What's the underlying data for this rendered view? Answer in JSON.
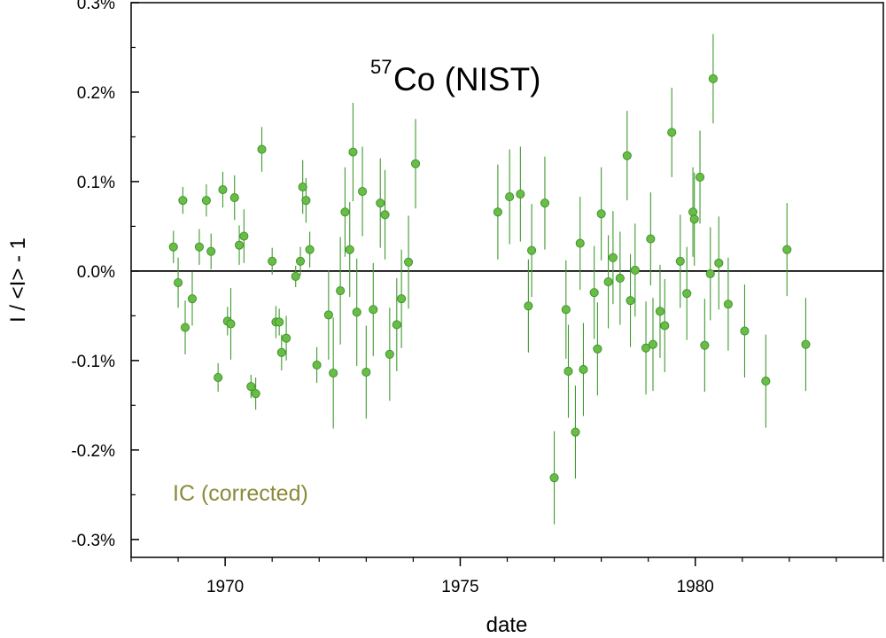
{
  "chart_data": {
    "type": "scatter",
    "title_prefix": "57",
    "title": "Co (NIST)",
    "xlabel": "date",
    "ylabel": "I / <I> - 1",
    "annotation": "IC (corrected)",
    "xlim": [
      1968,
      1984
    ],
    "ylim": [
      -0.32,
      0.3
    ],
    "x_ticks": [
      1970,
      1975,
      1980
    ],
    "y_ticks": [
      -0.3,
      -0.2,
      -0.1,
      0.0,
      0.1,
      0.2,
      0.3
    ],
    "y_tick_labels": [
      "-0.3%",
      "-0.2%",
      "-0.1%",
      "0.0%",
      "0.1%",
      "0.2%",
      "0.3%"
    ],
    "reference_line": 0.0,
    "colors": {
      "marker_fill": "#67bd45",
      "marker_stroke": "#3f8f2a",
      "errorbar": "#3f9a2e",
      "annotation": "#8b8a3a",
      "axis": "#000000"
    },
    "series": [
      {
        "name": "IC (corrected)",
        "points": [
          {
            "x": 1968.9,
            "y": 0.027,
            "err": 0.018
          },
          {
            "x": 1969.0,
            "y": -0.013,
            "err": 0.028
          },
          {
            "x": 1969.1,
            "y": 0.079,
            "err": 0.015
          },
          {
            "x": 1969.15,
            "y": -0.063,
            "err": 0.03
          },
          {
            "x": 1969.3,
            "y": -0.031,
            "err": 0.03
          },
          {
            "x": 1969.45,
            "y": 0.027,
            "err": 0.02
          },
          {
            "x": 1969.6,
            "y": 0.079,
            "err": 0.018
          },
          {
            "x": 1969.7,
            "y": 0.022,
            "err": 0.02
          },
          {
            "x": 1969.85,
            "y": -0.119,
            "err": 0.016
          },
          {
            "x": 1969.95,
            "y": 0.091,
            "err": 0.02
          },
          {
            "x": 1970.05,
            "y": -0.056,
            "err": 0.016
          },
          {
            "x": 1970.12,
            "y": -0.059,
            "err": 0.04
          },
          {
            "x": 1970.2,
            "y": 0.082,
            "err": 0.025
          },
          {
            "x": 1970.3,
            "y": 0.029,
            "err": 0.022
          },
          {
            "x": 1970.4,
            "y": 0.039,
            "err": 0.03
          },
          {
            "x": 1970.55,
            "y": -0.129,
            "err": 0.013
          },
          {
            "x": 1970.65,
            "y": -0.137,
            "err": 0.018
          },
          {
            "x": 1970.78,
            "y": 0.136,
            "err": 0.025
          },
          {
            "x": 1971.0,
            "y": 0.011,
            "err": 0.015
          },
          {
            "x": 1971.08,
            "y": -0.057,
            "err": 0.018
          },
          {
            "x": 1971.15,
            "y": -0.057,
            "err": 0.015
          },
          {
            "x": 1971.2,
            "y": -0.091,
            "err": 0.02
          },
          {
            "x": 1971.3,
            "y": -0.075,
            "err": 0.025
          },
          {
            "x": 1971.5,
            "y": -0.006,
            "err": 0.012
          },
          {
            "x": 1971.6,
            "y": 0.011,
            "err": 0.016
          },
          {
            "x": 1971.65,
            "y": 0.094,
            "err": 0.03
          },
          {
            "x": 1971.72,
            "y": 0.079,
            "err": 0.025
          },
          {
            "x": 1971.8,
            "y": 0.024,
            "err": 0.02
          },
          {
            "x": 1971.95,
            "y": -0.105,
            "err": 0.02
          },
          {
            "x": 1972.2,
            "y": -0.049,
            "err": 0.05
          },
          {
            "x": 1972.3,
            "y": -0.114,
            "err": 0.062
          },
          {
            "x": 1972.45,
            "y": -0.022,
            "err": 0.06
          },
          {
            "x": 1972.55,
            "y": 0.066,
            "err": 0.05
          },
          {
            "x": 1972.65,
            "y": 0.024,
            "err": 0.053
          },
          {
            "x": 1972.72,
            "y": 0.133,
            "err": 0.055
          },
          {
            "x": 1972.8,
            "y": -0.046,
            "err": 0.06
          },
          {
            "x": 1972.92,
            "y": 0.089,
            "err": 0.05
          },
          {
            "x": 1973.0,
            "y": -0.113,
            "err": 0.052
          },
          {
            "x": 1973.15,
            "y": -0.043,
            "err": 0.052
          },
          {
            "x": 1973.3,
            "y": 0.076,
            "err": 0.05
          },
          {
            "x": 1973.4,
            "y": 0.063,
            "err": 0.05
          },
          {
            "x": 1973.5,
            "y": -0.093,
            "err": 0.052
          },
          {
            "x": 1973.65,
            "y": -0.06,
            "err": 0.052
          },
          {
            "x": 1973.75,
            "y": -0.031,
            "err": 0.055
          },
          {
            "x": 1973.9,
            "y": 0.01,
            "err": 0.052
          },
          {
            "x": 1974.05,
            "y": 0.12,
            "err": 0.05
          },
          {
            "x": 1975.8,
            "y": 0.066,
            "err": 0.053
          },
          {
            "x": 1976.05,
            "y": 0.083,
            "err": 0.053
          },
          {
            "x": 1976.28,
            "y": 0.086,
            "err": 0.053
          },
          {
            "x": 1976.45,
            "y": -0.039,
            "err": 0.052
          },
          {
            "x": 1976.52,
            "y": 0.023,
            "err": 0.052
          },
          {
            "x": 1976.8,
            "y": 0.076,
            "err": 0.052
          },
          {
            "x": 1977.0,
            "y": -0.231,
            "err": 0.052
          },
          {
            "x": 1977.25,
            "y": -0.043,
            "err": 0.055
          },
          {
            "x": 1977.3,
            "y": -0.112,
            "err": 0.052
          },
          {
            "x": 1977.45,
            "y": -0.18,
            "err": 0.052
          },
          {
            "x": 1977.55,
            "y": 0.031,
            "err": 0.052
          },
          {
            "x": 1977.62,
            "y": -0.11,
            "err": 0.052
          },
          {
            "x": 1977.85,
            "y": -0.024,
            "err": 0.052
          },
          {
            "x": 1977.92,
            "y": -0.087,
            "err": 0.052
          },
          {
            "x": 1978.0,
            "y": 0.064,
            "err": 0.052
          },
          {
            "x": 1978.15,
            "y": -0.012,
            "err": 0.052
          },
          {
            "x": 1978.25,
            "y": 0.015,
            "err": 0.052
          },
          {
            "x": 1978.4,
            "y": -0.008,
            "err": 0.052
          },
          {
            "x": 1978.55,
            "y": 0.129,
            "err": 0.05
          },
          {
            "x": 1978.62,
            "y": -0.033,
            "err": 0.052
          },
          {
            "x": 1978.72,
            "y": 0.001,
            "err": 0.052
          },
          {
            "x": 1978.95,
            "y": -0.086,
            "err": 0.052
          },
          {
            "x": 1979.05,
            "y": 0.036,
            "err": 0.052
          },
          {
            "x": 1979.1,
            "y": -0.082,
            "err": 0.052
          },
          {
            "x": 1979.25,
            "y": -0.045,
            "err": 0.052
          },
          {
            "x": 1979.35,
            "y": -0.061,
            "err": 0.052
          },
          {
            "x": 1979.5,
            "y": 0.155,
            "err": 0.05
          },
          {
            "x": 1979.68,
            "y": 0.011,
            "err": 0.052
          },
          {
            "x": 1979.82,
            "y": -0.025,
            "err": 0.052
          },
          {
            "x": 1979.95,
            "y": 0.066,
            "err": 0.05
          },
          {
            "x": 1979.98,
            "y": 0.058,
            "err": 0.052
          },
          {
            "x": 1980.1,
            "y": 0.105,
            "err": 0.052
          },
          {
            "x": 1980.2,
            "y": -0.083,
            "err": 0.052
          },
          {
            "x": 1980.32,
            "y": -0.003,
            "err": 0.052
          },
          {
            "x": 1980.38,
            "y": 0.215,
            "err": 0.05
          },
          {
            "x": 1980.5,
            "y": 0.009,
            "err": 0.052
          },
          {
            "x": 1980.7,
            "y": -0.037,
            "err": 0.052
          },
          {
            "x": 1981.05,
            "y": -0.067,
            "err": 0.052
          },
          {
            "x": 1981.5,
            "y": -0.123,
            "err": 0.052
          },
          {
            "x": 1981.95,
            "y": 0.024,
            "err": 0.052
          },
          {
            "x": 1982.35,
            "y": -0.082,
            "err": 0.052
          }
        ]
      }
    ]
  }
}
